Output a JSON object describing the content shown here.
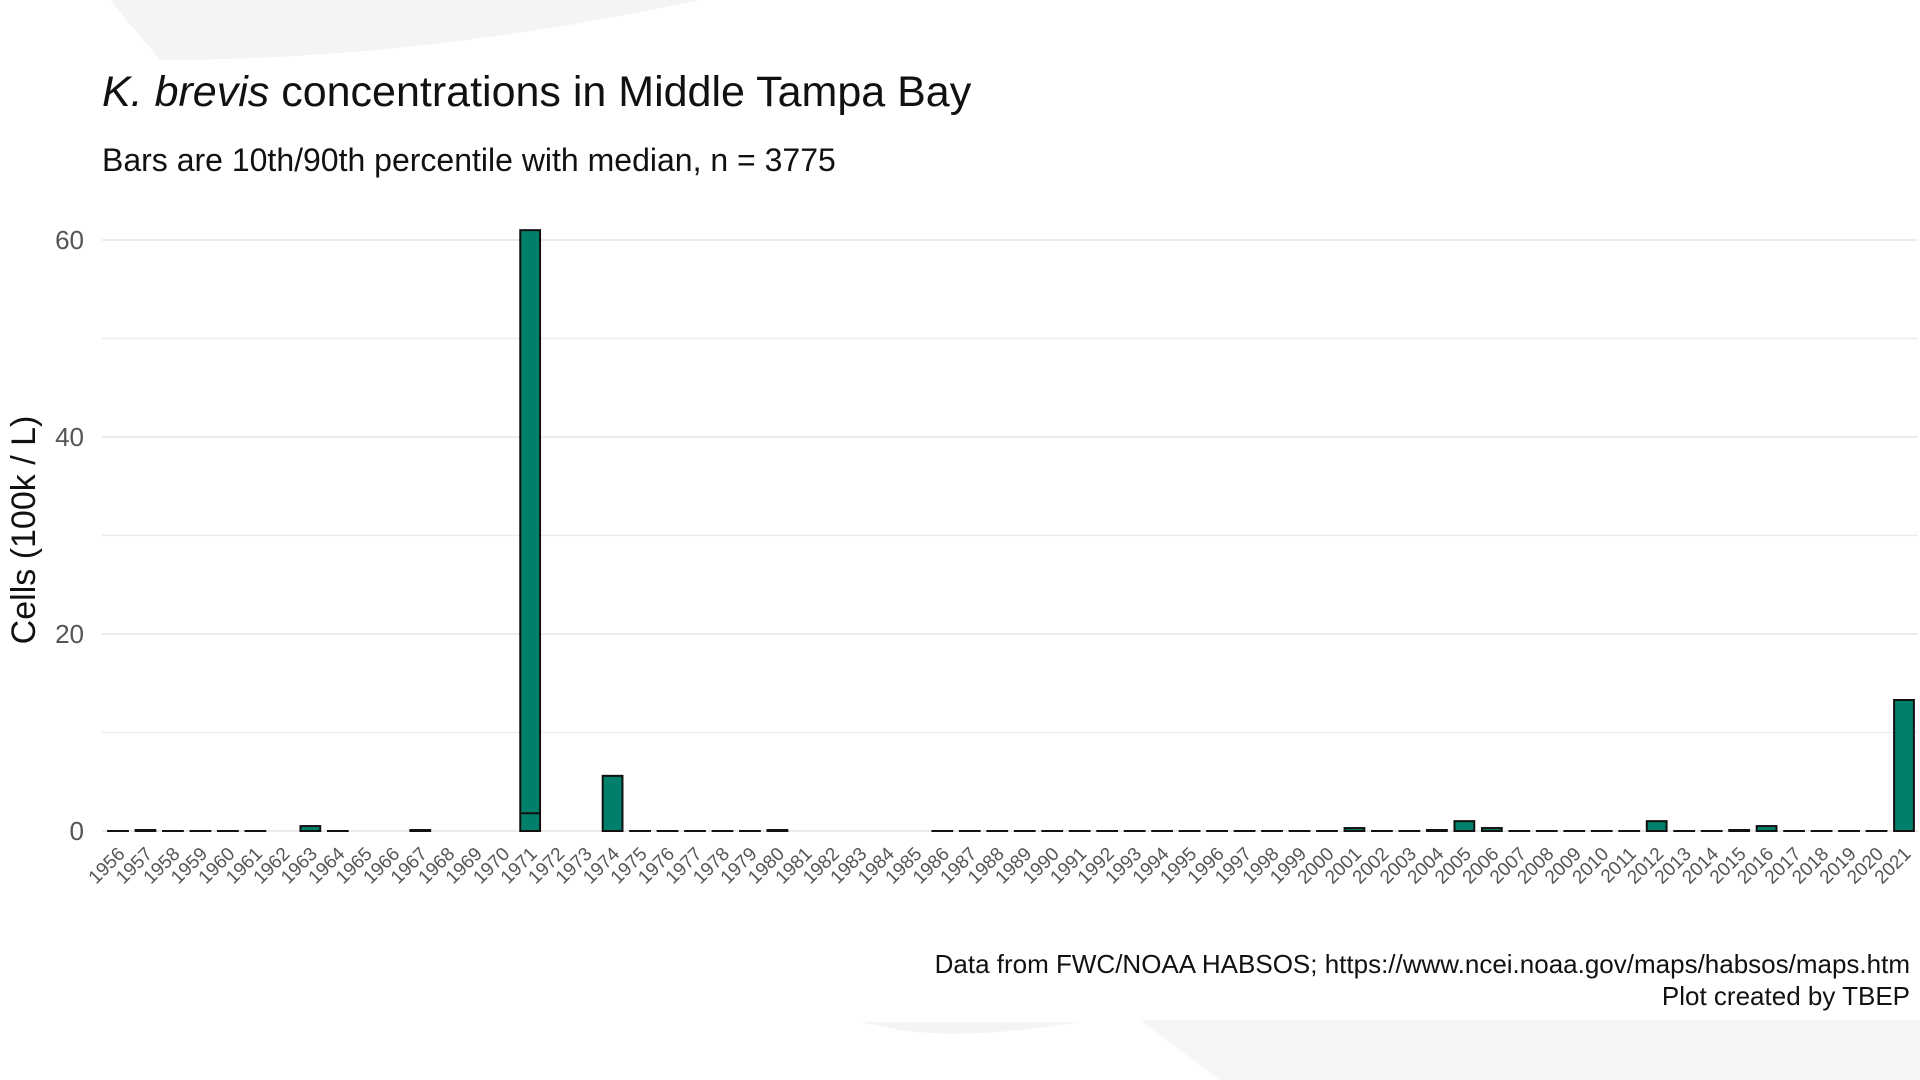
{
  "chart_data": {
    "type": "bar",
    "title_italic": "K. brevis",
    "title_rest": " concentrations in Middle Tampa Bay",
    "subtitle": "Bars are 10th/90th percentile with median, n = 3775",
    "xlabel": "",
    "ylabel": "Cells (100k / L)",
    "ylim": [
      0,
      63
    ],
    "yticks": [
      0,
      20,
      40,
      60
    ],
    "grid": true,
    "legend": "none",
    "categories": [
      "1956",
      "1957",
      "1958",
      "1959",
      "1960",
      "1961",
      "1962",
      "1963",
      "1964",
      "1965",
      "1966",
      "1967",
      "1968",
      "1969",
      "1970",
      "1971",
      "1972",
      "1973",
      "1974",
      "1975",
      "1976",
      "1977",
      "1978",
      "1979",
      "1980",
      "1981",
      "1982",
      "1983",
      "1984",
      "1985",
      "1986",
      "1987",
      "1988",
      "1989",
      "1990",
      "1991",
      "1992",
      "1993",
      "1994",
      "1995",
      "1996",
      "1997",
      "1998",
      "1999",
      "2000",
      "2001",
      "2002",
      "2003",
      "2004",
      "2005",
      "2006",
      "2007",
      "2008",
      "2009",
      "2010",
      "2011",
      "2012",
      "2013",
      "2014",
      "2015",
      "2016",
      "2017",
      "2018",
      "2019",
      "2020",
      "2021"
    ],
    "series": [
      {
        "p10": [
          0,
          0,
          0,
          0,
          0,
          0,
          null,
          0,
          0,
          null,
          null,
          0,
          null,
          null,
          null,
          0,
          null,
          null,
          0,
          0,
          0,
          0,
          0,
          0,
          0,
          null,
          null,
          null,
          null,
          null,
          0,
          0,
          0,
          0,
          0,
          0,
          0,
          0,
          0,
          0,
          0,
          0,
          0,
          0,
          0,
          0,
          0,
          0,
          0,
          0,
          0,
          0,
          0,
          0,
          0,
          0,
          0,
          0,
          0,
          0,
          0,
          0,
          0,
          0,
          0,
          0
        ],
        "median": [
          0,
          0,
          0,
          0,
          0,
          0,
          null,
          0,
          0,
          null,
          null,
          0,
          null,
          null,
          null,
          1.8,
          null,
          null,
          0,
          0,
          0,
          0,
          0,
          0,
          0,
          null,
          null,
          null,
          null,
          null,
          0,
          0,
          0,
          0,
          0,
          0,
          0,
          0,
          0,
          0,
          0,
          0,
          0,
          0,
          0,
          0,
          0,
          0,
          0,
          0,
          0,
          0,
          0,
          0,
          0,
          0,
          0,
          0,
          0,
          0,
          0,
          0,
          0,
          0,
          0,
          0
        ],
        "p90": [
          0,
          0.1,
          0,
          0,
          0,
          0,
          null,
          0.5,
          0,
          null,
          null,
          0.1,
          null,
          null,
          null,
          61,
          null,
          null,
          5.6,
          0,
          0,
          0,
          0,
          0,
          0.1,
          null,
          null,
          null,
          null,
          null,
          0,
          0,
          0,
          0,
          0,
          0,
          0,
          0,
          0,
          0,
          0,
          0,
          0,
          0,
          0,
          0.3,
          0,
          0,
          0.1,
          1.0,
          0.3,
          0,
          0,
          0,
          0,
          0,
          1.0,
          0,
          0,
          0.1,
          0.5,
          0,
          0,
          0,
          0,
          13.3
        ]
      }
    ],
    "bar_color": "#00806A",
    "bar_edge_color": "#111111",
    "grid_color": "#EBEBEB"
  },
  "caption": {
    "line1": "Data from FWC/NOAA HABSOS; https://www.ncei.noaa.gov/maps/habsos/maps.htm",
    "line2": "Plot created by TBEP"
  }
}
